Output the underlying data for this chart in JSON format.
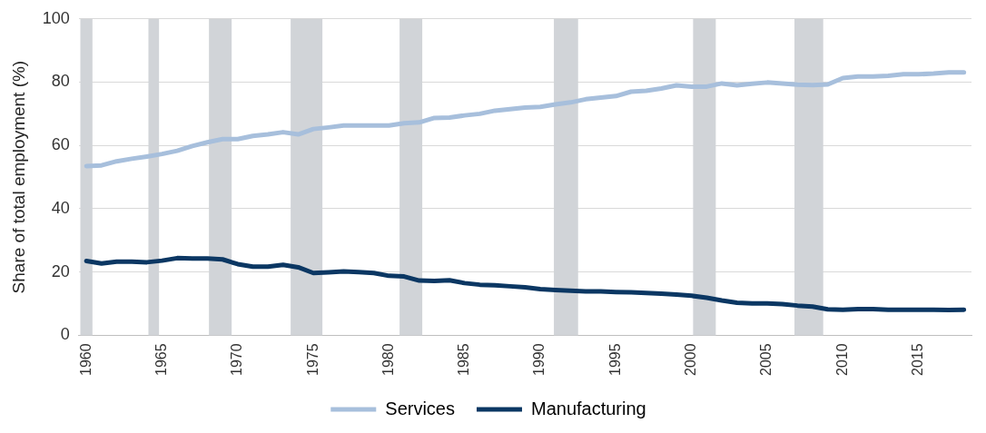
{
  "chart_data": {
    "type": "line",
    "ylabel": "Share of total employment (%)",
    "x": [
      1960,
      1961,
      1962,
      1963,
      1964,
      1965,
      1966,
      1967,
      1968,
      1969,
      1970,
      1971,
      1972,
      1973,
      1974,
      1975,
      1976,
      1977,
      1978,
      1979,
      1980,
      1981,
      1982,
      1983,
      1984,
      1985,
      1986,
      1987,
      1988,
      1989,
      1990,
      1991,
      1992,
      1993,
      1994,
      1995,
      1996,
      1997,
      1998,
      1999,
      2000,
      2001,
      2002,
      2003,
      2004,
      2005,
      2006,
      2007,
      2008,
      2009,
      2010,
      2011,
      2012,
      2013,
      2014,
      2015,
      2016,
      2017,
      2018
    ],
    "series": [
      {
        "name": "Services",
        "color": "#a7bfdc",
        "values": [
          53.5,
          53.7,
          55,
          55.8,
          56.5,
          57.3,
          58.3,
          59.8,
          61,
          62,
          62,
          63,
          63.5,
          64.2,
          63.5,
          65.2,
          65.7,
          66.3,
          66.3,
          66.3,
          66.3,
          67,
          67.3,
          68.7,
          68.8,
          69.5,
          70,
          71,
          71.5,
          72,
          72.2,
          73,
          73.6,
          74.6,
          75.1,
          75.6,
          77,
          77.3,
          78,
          79,
          78.6,
          78.6,
          79.6,
          79,
          79.5,
          79.9,
          79.6,
          79.2,
          79.1,
          79.3,
          81.3,
          81.8,
          81.8,
          82,
          82.5,
          82.5,
          82.7,
          83.1,
          83.1
        ]
      },
      {
        "name": "Manufacturing",
        "color": "#0b3763",
        "values": [
          23.5,
          22.7,
          23.3,
          23.3,
          23.1,
          23.6,
          24.4,
          24.3,
          24.3,
          24,
          22.5,
          21.7,
          21.7,
          22.3,
          21.5,
          19.7,
          19.9,
          20.2,
          20,
          19.7,
          18.8,
          18.6,
          17.3,
          17.2,
          17.4,
          16.5,
          16,
          15.8,
          15.5,
          15.2,
          14.6,
          14.3,
          14.1,
          13.9,
          13.9,
          13.7,
          13.6,
          13.4,
          13.2,
          12.9,
          12.5,
          11.9,
          11,
          10.3,
          10.1,
          10.1,
          9.9,
          9.4,
          9.1,
          8.2,
          8.1,
          8.3,
          8.3,
          8.1,
          8.1,
          8.1,
          8.1,
          8,
          8.1
        ]
      }
    ],
    "xlim": [
      1959.5,
      2018.5
    ],
    "xticks": [
      1960,
      1965,
      1970,
      1975,
      1980,
      1985,
      1990,
      1995,
      2000,
      2005,
      2010,
      2015
    ],
    "ylim": [
      0,
      100
    ],
    "yticks": [
      0,
      20,
      40,
      60,
      80,
      100
    ],
    "bands": [
      {
        "axis": "x",
        "from": 1959.6,
        "to": 1960.4,
        "color": "#d1d4d8"
      },
      {
        "axis": "x",
        "from": 1964.1,
        "to": 1964.8,
        "color": "#d1d4d8"
      },
      {
        "axis": "x",
        "from": 1968.1,
        "to": 1969.6,
        "color": "#d1d4d8"
      },
      {
        "axis": "x",
        "from": 1973.5,
        "to": 1975.6,
        "color": "#d1d4d8"
      },
      {
        "axis": "x",
        "from": 1980.7,
        "to": 1982.2,
        "color": "#d1d4d8"
      },
      {
        "axis": "x",
        "from": 1990.9,
        "to": 1992.5,
        "color": "#d1d4d8"
      },
      {
        "axis": "x",
        "from": 2000.1,
        "to": 2001.6,
        "color": "#d1d4d8"
      },
      {
        "axis": "x",
        "from": 2006.8,
        "to": 2008.7,
        "color": "#d1d4d8"
      }
    ],
    "grid": "y",
    "legend": "bottom",
    "marker": "none",
    "line_style": "solid"
  }
}
